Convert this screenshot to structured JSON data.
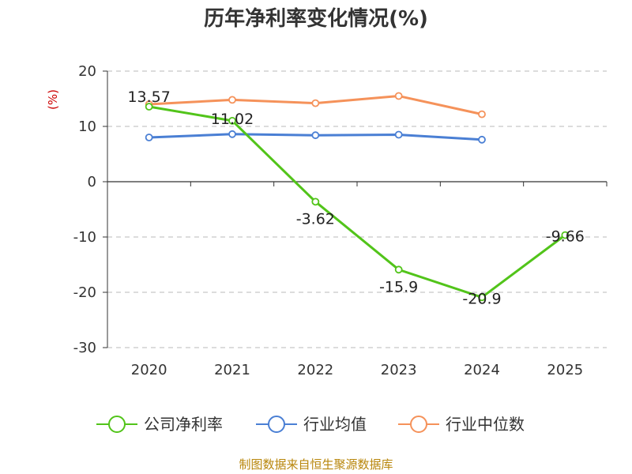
{
  "chart_data": {
    "type": "line",
    "title": "历年净利率变化情况(%)",
    "ylabel": "(%)",
    "xlabel": "",
    "categories": [
      "2020",
      "2021",
      "2022",
      "2023",
      "2024",
      "2025"
    ],
    "ylim": [
      -30,
      20
    ],
    "yticks": [
      20,
      10,
      0,
      -10,
      -20,
      -30
    ],
    "grid": true,
    "legend_position": "bottom",
    "series": [
      {
        "name": "公司净利率",
        "color": "#52c41a",
        "values": [
          13.57,
          11.02,
          -3.62,
          -15.9,
          -20.9,
          -9.66
        ],
        "labels": [
          "13.57",
          "11.02",
          "-3.62",
          "-15.9",
          "-20.9",
          "-9.66"
        ]
      },
      {
        "name": "行业均值",
        "color": "#4a7fd4",
        "values": [
          8.0,
          8.6,
          8.4,
          8.5,
          7.6,
          null
        ]
      },
      {
        "name": "行业中位数",
        "color": "#f5925a",
        "values": [
          14.0,
          14.8,
          14.2,
          15.5,
          12.2,
          null
        ]
      }
    ],
    "source": "制图数据来自恒生聚源数据库"
  }
}
